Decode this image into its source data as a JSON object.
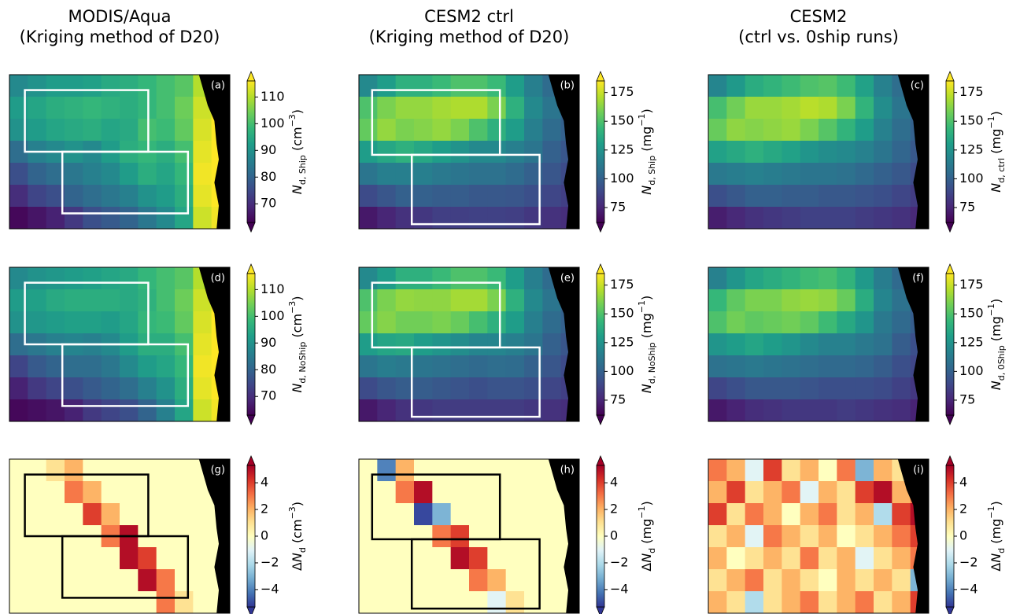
{
  "chart_data": [
    {
      "type": "heatmap",
      "title": [
        "MODIS/Aqua",
        "(Kriging method of D20)"
      ],
      "panel": "(a)",
      "colormap": "viridis",
      "clim": [
        63,
        116
      ],
      "cticks": [
        70,
        80,
        90,
        100,
        110
      ],
      "cbar_label": [
        {
          "text": "N",
          "style": "italic"
        },
        {
          "text": "d, Ship",
          "style": "sub"
        },
        {
          "text": " (cm",
          "style": "normal"
        },
        {
          "text": "−3",
          "style": "sup"
        },
        {
          "text": ")",
          "style": "normal"
        }
      ],
      "values": [
        [
          88,
          90,
          92,
          92,
          93,
          95,
          96,
          98,
          100,
          102,
          110,
          115
        ],
        [
          92,
          94,
          96,
          97,
          98,
          97,
          96,
          98,
          100,
          104,
          112,
          116
        ],
        [
          90,
          92,
          94,
          95,
          96,
          94,
          95,
          100,
          99,
          103,
          113,
          116
        ],
        [
          82,
          86,
          88,
          90,
          88,
          92,
          96,
          98,
          96,
          100,
          114,
          116
        ],
        [
          76,
          80,
          82,
          84,
          86,
          88,
          92,
          96,
          94,
          98,
          115,
          116
        ],
        [
          70,
          74,
          76,
          80,
          82,
          84,
          86,
          90,
          92,
          96,
          114,
          116
        ],
        [
          64,
          66,
          68,
          72,
          76,
          78,
          80,
          84,
          88,
          94,
          112,
          115
        ]
      ]
    },
    {
      "type": "heatmap",
      "title": [
        "CESM2 ctrl",
        "(Kriging method of D20)"
      ],
      "panel": "(b)",
      "colormap": "viridis",
      "clim": [
        62,
        185
      ],
      "cticks": [
        75,
        100,
        125,
        150,
        175
      ],
      "cbar_label": [
        {
          "text": "N",
          "style": "italic"
        },
        {
          "text": "d, Ship",
          "style": "sub"
        },
        {
          "text": " (mg",
          "style": "normal"
        },
        {
          "text": "−1",
          "style": "sup"
        },
        {
          "text": ")",
          "style": "normal"
        }
      ],
      "values": [
        [
          120,
          130,
          140,
          140,
          145,
          150,
          150,
          145,
          130,
          115,
          105,
          100
        ],
        [
          150,
          160,
          165,
          165,
          168,
          170,
          170,
          160,
          140,
          120,
          110,
          100
        ],
        [
          155,
          165,
          160,
          162,
          165,
          160,
          150,
          140,
          130,
          115,
          105,
          100
        ],
        [
          130,
          135,
          140,
          135,
          130,
          125,
          120,
          120,
          115,
          110,
          100,
          95
        ],
        [
          110,
          115,
          115,
          115,
          112,
          110,
          108,
          108,
          105,
          100,
          95,
          90
        ],
        [
          90,
          95,
          100,
          100,
          98,
          98,
          96,
          96,
          95,
          92,
          88,
          85
        ],
        [
          70,
          75,
          80,
          82,
          85,
          85,
          86,
          86,
          85,
          82,
          80,
          78
        ]
      ]
    },
    {
      "type": "heatmap",
      "title": [
        "CESM2",
        "(ctrl vs. 0ship runs)"
      ],
      "panel": "(c)",
      "colormap": "viridis",
      "clim": [
        62,
        185
      ],
      "cticks": [
        75,
        100,
        125,
        150,
        175
      ],
      "cbar_label": [
        {
          "text": "N",
          "style": "italic"
        },
        {
          "text": "d, ctrl",
          "style": "sub"
        },
        {
          "text": " (mg",
          "style": "normal"
        },
        {
          "text": "−1",
          "style": "sup"
        },
        {
          "text": ")",
          "style": "normal"
        }
      ],
      "values": [
        [
          118,
          128,
          138,
          142,
          146,
          150,
          152,
          146,
          132,
          116,
          106,
          100
        ],
        [
          148,
          158,
          166,
          166,
          168,
          172,
          170,
          160,
          142,
          122,
          110,
          102
        ],
        [
          156,
          164,
          162,
          164,
          166,
          160,
          152,
          142,
          130,
          116,
          106,
          100
        ],
        [
          132,
          136,
          140,
          136,
          132,
          126,
          122,
          120,
          116,
          110,
          102,
          96
        ],
        [
          112,
          114,
          116,
          114,
          112,
          110,
          110,
          108,
          104,
          100,
          96,
          90
        ],
        [
          92,
          96,
          100,
          100,
          98,
          98,
          96,
          96,
          94,
          92,
          88,
          84
        ],
        [
          72,
          76,
          80,
          82,
          84,
          86,
          86,
          86,
          84,
          82,
          80,
          76
        ]
      ]
    },
    {
      "type": "heatmap",
      "panel": "(d)",
      "colormap": "viridis",
      "clim": [
        63,
        116
      ],
      "cticks": [
        70,
        80,
        90,
        100,
        110
      ],
      "cbar_label": [
        {
          "text": "N",
          "style": "italic"
        },
        {
          "text": "d, NoShip",
          "style": "sub"
        },
        {
          "text": " (cm",
          "style": "normal"
        },
        {
          "text": "−3",
          "style": "sup"
        },
        {
          "text": ")",
          "style": "normal"
        }
      ],
      "values": [
        [
          88,
          90,
          91,
          92,
          93,
          94,
          95,
          98,
          100,
          102,
          110,
          115
        ],
        [
          92,
          93,
          95,
          96,
          96,
          96,
          95,
          97,
          100,
          104,
          112,
          116
        ],
        [
          90,
          91,
          92,
          93,
          93,
          92,
          94,
          98,
          99,
          103,
          113,
          116
        ],
        [
          82,
          84,
          86,
          87,
          86,
          88,
          92,
          96,
          96,
          100,
          114,
          116
        ],
        [
          74,
          78,
          80,
          82,
          82,
          84,
          88,
          92,
          94,
          98,
          115,
          116
        ],
        [
          68,
          72,
          74,
          76,
          78,
          80,
          82,
          86,
          90,
          96,
          114,
          116
        ],
        [
          64,
          65,
          66,
          68,
          72,
          74,
          76,
          80,
          86,
          94,
          112,
          115
        ]
      ]
    },
    {
      "type": "heatmap",
      "panel": "(e)",
      "colormap": "viridis",
      "clim": [
        62,
        185
      ],
      "cticks": [
        75,
        100,
        125,
        150,
        175
      ],
      "cbar_label": [
        {
          "text": "N",
          "style": "italic"
        },
        {
          "text": "d, NoShip",
          "style": "sub"
        },
        {
          "text": " (mg",
          "style": "normal"
        },
        {
          "text": "−1",
          "style": "sup"
        },
        {
          "text": ")",
          "style": "normal"
        }
      ],
      "values": [
        [
          120,
          130,
          140,
          140,
          145,
          150,
          150,
          145,
          130,
          115,
          105,
          100
        ],
        [
          150,
          160,
          165,
          164,
          164,
          168,
          168,
          160,
          140,
          120,
          110,
          100
        ],
        [
          155,
          162,
          158,
          158,
          160,
          156,
          148,
          140,
          130,
          115,
          105,
          100
        ],
        [
          130,
          134,
          136,
          130,
          126,
          122,
          118,
          118,
          115,
          110,
          100,
          95
        ],
        [
          110,
          114,
          112,
          110,
          108,
          106,
          104,
          106,
          105,
          100,
          95,
          90
        ],
        [
          90,
          95,
          98,
          98,
          96,
          94,
          92,
          94,
          94,
          92,
          88,
          85
        ],
        [
          70,
          75,
          80,
          82,
          84,
          84,
          84,
          84,
          84,
          82,
          80,
          78
        ]
      ]
    },
    {
      "type": "heatmap",
      "panel": "(f)",
      "colormap": "viridis",
      "clim": [
        62,
        185
      ],
      "cticks": [
        75,
        100,
        125,
        150,
        175
      ],
      "cbar_label": [
        {
          "text": "N",
          "style": "italic"
        },
        {
          "text": "d, 0Ship",
          "style": "sub"
        },
        {
          "text": " (mg",
          "style": "normal"
        },
        {
          "text": "−1",
          "style": "sup"
        },
        {
          "text": ")",
          "style": "normal"
        }
      ],
      "values": [
        [
          116,
          126,
          134,
          138,
          142,
          146,
          148,
          142,
          128,
          114,
          104,
          98
        ],
        [
          144,
          154,
          160,
          160,
          164,
          166,
          164,
          156,
          138,
          118,
          108,
          100
        ],
        [
          150,
          158,
          154,
          156,
          158,
          154,
          146,
          136,
          126,
          112,
          104,
          98
        ],
        [
          126,
          130,
          134,
          130,
          126,
          120,
          116,
          116,
          112,
          108,
          98,
          92
        ],
        [
          108,
          110,
          112,
          110,
          108,
          106,
          104,
          104,
          102,
          98,
          92,
          88
        ],
        [
          88,
          92,
          96,
          96,
          96,
          94,
          92,
          92,
          92,
          90,
          86,
          82
        ],
        [
          70,
          74,
          78,
          80,
          82,
          82,
          82,
          84,
          82,
          80,
          78,
          74
        ]
      ]
    },
    {
      "type": "heatmap",
      "panel": "(g)",
      "colormap": "RdYlBu_r",
      "clim": [
        -5.3,
        5.3
      ],
      "cticks": [
        {
          "value": -4,
          "label": "−4"
        },
        {
          "value": -2,
          "label": "−2"
        },
        0,
        2,
        4
      ],
      "cbar_label": [
        {
          "text": "Δ",
          "style": "normal"
        },
        {
          "text": "N",
          "style": "italic"
        },
        {
          "text": "d",
          "style": "sub"
        },
        {
          "text": " (cm",
          "style": "normal"
        },
        {
          "text": "−3",
          "style": "sup"
        },
        {
          "text": ")",
          "style": "normal"
        }
      ],
      "values": [
        [
          0,
          0,
          1,
          2,
          0,
          0,
          0,
          0,
          0,
          0,
          0,
          0
        ],
        [
          0,
          0,
          0,
          3,
          2,
          0,
          0,
          0,
          0,
          0,
          0,
          0
        ],
        [
          0,
          0,
          0,
          0,
          4,
          2,
          0,
          0,
          0,
          0,
          0,
          0
        ],
        [
          0,
          0,
          0,
          0,
          0,
          3,
          5,
          0,
          0,
          0,
          0,
          0
        ],
        [
          0,
          0,
          0,
          0,
          0,
          0,
          5,
          4,
          0,
          0,
          0,
          0
        ],
        [
          0,
          0,
          0,
          0,
          0,
          0,
          0,
          5,
          3,
          0,
          0,
          0
        ],
        [
          0,
          0,
          0,
          0,
          0,
          0,
          0,
          0,
          3,
          1,
          0,
          0
        ]
      ]
    },
    {
      "type": "heatmap",
      "panel": "(h)",
      "colormap": "RdYlBu_r",
      "clim": [
        -5.3,
        5.3
      ],
      "cticks": [
        {
          "value": -4,
          "label": "−4"
        },
        {
          "value": -2,
          "label": "−2"
        },
        0,
        2,
        4
      ],
      "cbar_label": [
        {
          "text": "Δ",
          "style": "normal"
        },
        {
          "text": "N",
          "style": "italic"
        },
        {
          "text": "d",
          "style": "sub"
        },
        {
          "text": " (mg",
          "style": "normal"
        },
        {
          "text": "−1",
          "style": "sup"
        },
        {
          "text": ")",
          "style": "normal"
        }
      ],
      "values": [
        [
          0,
          -4,
          2,
          0,
          0,
          0,
          0,
          0,
          0,
          0,
          0,
          0
        ],
        [
          0,
          0,
          3,
          5,
          0,
          0,
          0,
          0,
          0,
          0,
          0,
          0
        ],
        [
          0,
          0,
          0,
          -5,
          -3,
          0,
          0,
          0,
          0,
          0,
          0,
          0
        ],
        [
          0,
          0,
          0,
          0,
          3,
          4,
          0,
          0,
          0,
          0,
          0,
          0
        ],
        [
          0,
          0,
          0,
          0,
          0,
          5,
          4,
          0,
          0,
          0,
          0,
          0
        ],
        [
          0,
          0,
          0,
          0,
          0,
          0,
          3,
          2,
          0,
          0,
          0,
          0
        ],
        [
          0,
          0,
          0,
          0,
          0,
          0,
          0,
          -1,
          1,
          0,
          0,
          0
        ]
      ]
    },
    {
      "type": "heatmap",
      "panel": "(i)",
      "colormap": "RdYlBu_r",
      "clim": [
        -5.3,
        5.3
      ],
      "cticks": [
        {
          "value": -4,
          "label": "−4"
        },
        {
          "value": -2,
          "label": "−2"
        },
        0,
        2,
        4
      ],
      "cbar_label": [
        {
          "text": "Δ",
          "style": "normal"
        },
        {
          "text": "N",
          "style": "italic"
        },
        {
          "text": "d",
          "style": "sub"
        },
        {
          "text": " (mg",
          "style": "normal"
        },
        {
          "text": "−1",
          "style": "sup"
        },
        {
          "text": ")",
          "style": "normal"
        }
      ],
      "values": [
        [
          3,
          2,
          -1,
          4,
          1,
          2,
          0,
          3,
          -3,
          2,
          1,
          2
        ],
        [
          2,
          4,
          1,
          2,
          3,
          -1,
          2,
          1,
          4,
          5,
          2,
          3
        ],
        [
          4,
          1,
          3,
          2,
          0,
          2,
          3,
          1,
          2,
          -2,
          4,
          5
        ],
        [
          1,
          2,
          -1,
          3,
          2,
          1,
          2,
          0,
          1,
          2,
          3,
          4
        ],
        [
          2,
          0,
          1,
          2,
          1,
          3,
          1,
          2,
          -1,
          1,
          2,
          3
        ],
        [
          1,
          2,
          3,
          1,
          2,
          1,
          0,
          2,
          1,
          2,
          1,
          -3
        ],
        [
          2,
          1,
          -2,
          1,
          2,
          3,
          1,
          2,
          3,
          1,
          2,
          4
        ]
      ]
    }
  ]
}
